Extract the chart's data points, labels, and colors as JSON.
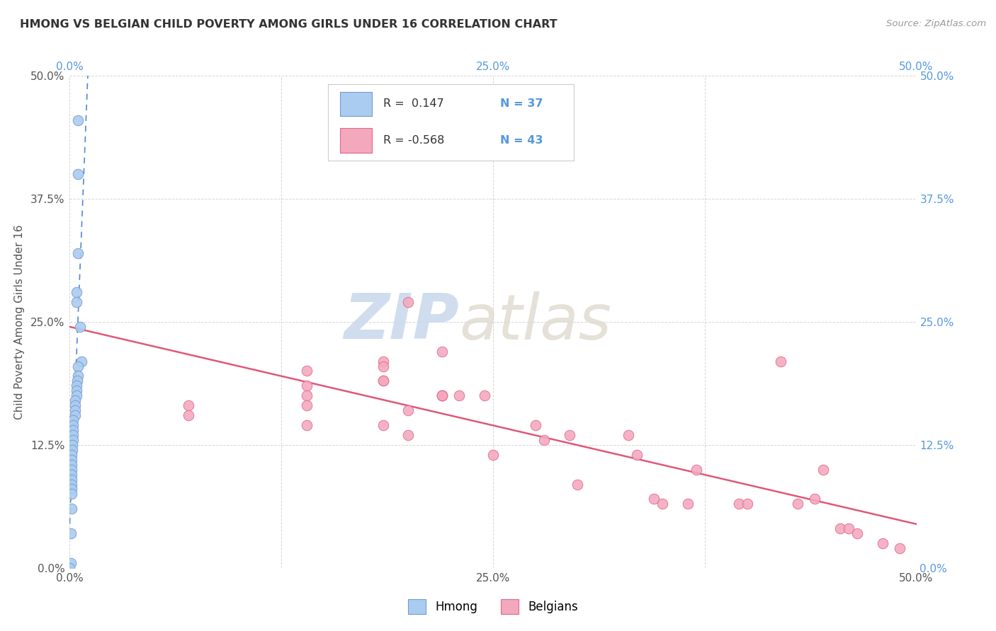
{
  "title": "HMONG VS BELGIAN CHILD POVERTY AMONG GIRLS UNDER 16 CORRELATION CHART",
  "source": "Source: ZipAtlas.com",
  "ylabel": "Child Poverty Among Girls Under 16",
  "xlim": [
    0.0,
    50.0
  ],
  "ylim": [
    0.0,
    50.0
  ],
  "xticks": [
    0.0,
    12.5,
    25.0,
    37.5,
    50.0
  ],
  "yticks": [
    0.0,
    12.5,
    25.0,
    37.5,
    50.0
  ],
  "xtick_labels": [
    "0.0%",
    "",
    "25.0%",
    "",
    "50.0%"
  ],
  "ytick_labels": [
    "0.0%",
    "12.5%",
    "25.0%",
    "37.5%",
    "50.0%"
  ],
  "hmong_color": "#aaccf0",
  "hmong_edge_color": "#7799cc",
  "belgians_color": "#f4a8be",
  "belgians_edge_color": "#e06888",
  "trend_hmong_color": "#5588cc",
  "trend_belgians_color": "#e05878",
  "right_tick_color": "#5599dd",
  "left_tick_color": "#555555",
  "background_color": "#ffffff",
  "grid_color": "#cccccc",
  "hmong_R": 0.147,
  "hmong_N": 37,
  "belgians_R": -0.568,
  "belgians_N": 43,
  "hmong_x": [
    0.5,
    0.5,
    0.5,
    0.4,
    0.4,
    0.6,
    0.7,
    0.5,
    0.5,
    0.45,
    0.4,
    0.4,
    0.4,
    0.3,
    0.3,
    0.3,
    0.3,
    0.2,
    0.2,
    0.2,
    0.2,
    0.2,
    0.15,
    0.15,
    0.1,
    0.1,
    0.1,
    0.1,
    0.1,
    0.1,
    0.1,
    0.1,
    0.1,
    0.1,
    0.05,
    0.05,
    0.0
  ],
  "hmong_y": [
    45.5,
    40.0,
    32.0,
    28.0,
    27.0,
    24.5,
    21.0,
    20.5,
    19.5,
    19.0,
    18.5,
    18.0,
    17.5,
    17.0,
    16.5,
    16.0,
    15.5,
    15.0,
    14.5,
    14.0,
    13.5,
    13.0,
    12.5,
    12.0,
    11.5,
    11.0,
    10.5,
    10.0,
    9.5,
    9.0,
    8.5,
    8.0,
    7.5,
    6.0,
    3.5,
    0.5,
    0.0
  ],
  "belgians_x": [
    7.0,
    7.0,
    14.0,
    14.0,
    14.0,
    14.0,
    14.0,
    18.5,
    18.5,
    18.5,
    18.5,
    18.5,
    20.0,
    20.0,
    20.0,
    22.0,
    22.0,
    22.0,
    22.0,
    23.0,
    24.5,
    25.0,
    27.5,
    28.0,
    29.5,
    30.0,
    33.0,
    33.5,
    34.5,
    35.0,
    36.5,
    37.0,
    39.5,
    40.0,
    42.0,
    43.0,
    44.0,
    44.5,
    45.5,
    46.0,
    46.5,
    48.0,
    49.0
  ],
  "belgians_y": [
    16.5,
    15.5,
    20.0,
    18.5,
    17.5,
    16.5,
    14.5,
    21.0,
    20.5,
    19.0,
    19.0,
    14.5,
    27.0,
    16.0,
    13.5,
    22.0,
    17.5,
    17.5,
    17.5,
    17.5,
    17.5,
    11.5,
    14.5,
    13.0,
    13.5,
    8.5,
    13.5,
    11.5,
    7.0,
    6.5,
    6.5,
    10.0,
    6.5,
    6.5,
    21.0,
    6.5,
    7.0,
    10.0,
    4.0,
    4.0,
    3.5,
    2.5,
    2.0
  ]
}
